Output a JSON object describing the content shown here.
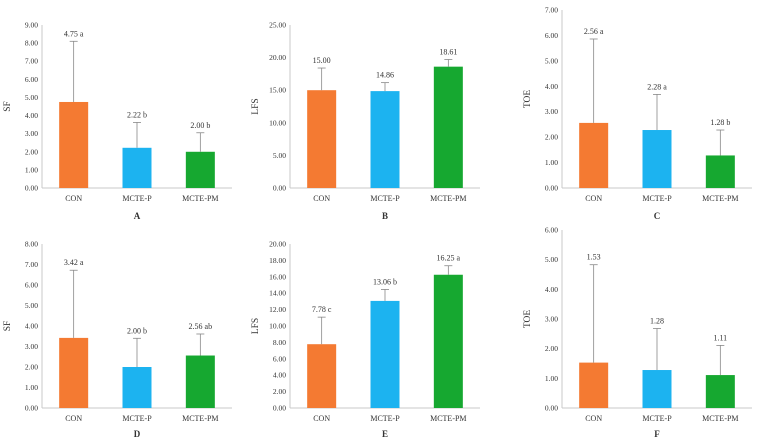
{
  "colors": {
    "con": "#F47A32",
    "mcte_p": "#1CB3F0",
    "mcte_pm": "#16A830",
    "axis": "#C8C8C8",
    "error_bar": "#888888"
  },
  "chart_data": [
    {
      "type": "bar",
      "panel": "A",
      "ylabel": "SF",
      "ylim": [
        0,
        9
      ],
      "yticks": [
        "0.00",
        "1.00",
        "2.00",
        "3.00",
        "4.00",
        "5.00",
        "6.00",
        "7.00",
        "8.00",
        "9.00"
      ],
      "categories": [
        "CON",
        "MCTE-P",
        "MCTE-PM"
      ],
      "values": [
        4.75,
        2.22,
        2.0
      ],
      "errors": [
        3.35,
        1.4,
        1.05
      ],
      "labels": [
        "4.75 a",
        "2.22 b",
        "2.00 b"
      ]
    },
    {
      "type": "bar",
      "panel": "B",
      "ylabel": "LFS",
      "ylim": [
        0,
        25
      ],
      "yticks": [
        "0.00",
        "5.00",
        "10.00",
        "15.00",
        "20.00",
        "25.00"
      ],
      "categories": [
        "CON",
        "MCTE-P",
        "MCTE-PM"
      ],
      "values": [
        15.0,
        14.86,
        18.61
      ],
      "errors": [
        3.4,
        1.3,
        1.1
      ],
      "labels": [
        "15.00",
        "14.86",
        "18.61"
      ]
    },
    {
      "type": "bar",
      "panel": "C",
      "ylabel": "TOE",
      "ylim": [
        0,
        7
      ],
      "yticks": [
        "0.00",
        "1.00",
        "2.00",
        "3.00",
        "4.00",
        "5.00",
        "6.00",
        "7.00"
      ],
      "categories": [
        "CON",
        "MCTE-P",
        "MCTE-PM"
      ],
      "values": [
        2.56,
        2.28,
        1.28
      ],
      "errors": [
        3.3,
        1.4,
        1.0
      ],
      "labels": [
        "2.56 a",
        "2.28 a",
        "1.28 b"
      ]
    },
    {
      "type": "bar",
      "panel": "D",
      "ylabel": "SF",
      "ylim": [
        0,
        8
      ],
      "yticks": [
        "0.00",
        "1.00",
        "2.00",
        "3.00",
        "4.00",
        "5.00",
        "6.00",
        "7.00",
        "8.00"
      ],
      "categories": [
        "CON",
        "MCTE-P",
        "MCTE-PM"
      ],
      "values": [
        3.42,
        2.0,
        2.56
      ],
      "errors": [
        3.3,
        1.4,
        1.05
      ],
      "labels": [
        "3.42 a",
        "2.00 b",
        "2.56 ab"
      ]
    },
    {
      "type": "bar",
      "panel": "E",
      "ylabel": "LFS",
      "ylim": [
        0,
        20
      ],
      "yticks": [
        "0.00",
        "2.00",
        "4.00",
        "6.00",
        "8.00",
        "10.00",
        "12.00",
        "14.00",
        "16.00",
        "18.00",
        "20.00"
      ],
      "categories": [
        "CON",
        "MCTE-P",
        "MCTE-PM"
      ],
      "values": [
        7.78,
        13.06,
        16.25
      ],
      "errors": [
        3.3,
        1.4,
        1.1
      ],
      "labels": [
        "7.78 c",
        "13.06 b",
        "16.25 a"
      ]
    },
    {
      "type": "bar",
      "panel": "F",
      "ylabel": "TOE",
      "ylim": [
        0,
        6
      ],
      "yticks": [
        "0.00",
        "1.00",
        "2.00",
        "3.00",
        "4.00",
        "5.00",
        "6.00"
      ],
      "categories": [
        "CON",
        "MCTE-P",
        "MCTE-PM"
      ],
      "values": [
        1.53,
        1.28,
        1.11
      ],
      "errors": [
        3.3,
        1.4,
        1.0
      ],
      "labels": [
        "1.53",
        "1.28",
        "1.11"
      ]
    }
  ]
}
